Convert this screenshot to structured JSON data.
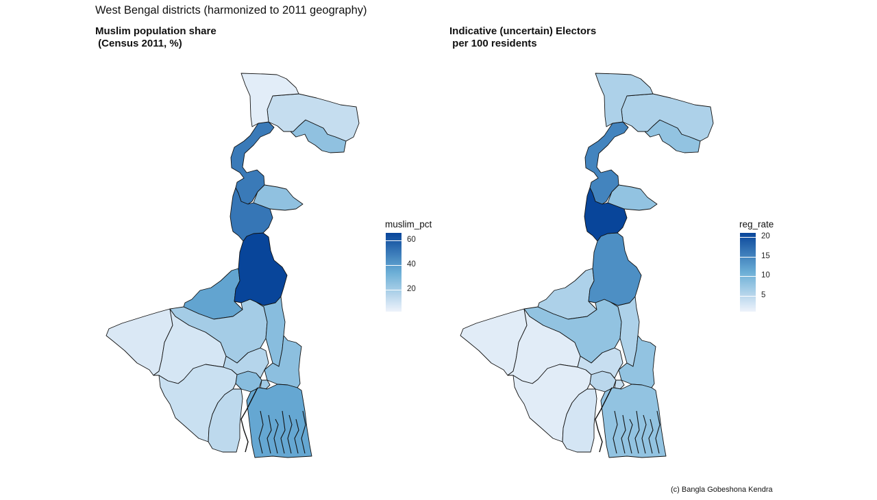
{
  "title": "West Bengal districts (harmonized to 2011 geography)",
  "credit": "(c) Bangla Gobeshona Kendra",
  "colors": {
    "low": "#eef3fb",
    "high": "#08459a",
    "border": "#111111"
  },
  "panels": [
    {
      "title": "Muslim population share\n (Census 2011, %)",
      "legend": {
        "title": "muslim_pct",
        "min": 2,
        "max": 66,
        "ticks": [
          20,
          40,
          60
        ]
      },
      "values": {
        "darjeeling": 5,
        "jalpaiguri": 12,
        "coochbehar": 25,
        "uttar_dinajpur": 50,
        "dakshin_dinajpur": 25,
        "malda": 51,
        "murshidabad": 66,
        "birbhum": 37,
        "bardhaman": 20,
        "nadia": 27,
        "north_24": 26,
        "howrah": 27,
        "hooghly": 16,
        "kolkata": 21,
        "south_24": 36,
        "purulia": 7,
        "bankura": 8,
        "paschim_medinipur": 11,
        "purba_medinipur": 14
      }
    },
    {
      "title": "Indicative (uncertain) Electors\n per 100 residents",
      "legend": {
        "title": "reg_rate",
        "min": 1,
        "max": 21,
        "ticks": [
          5,
          10,
          15,
          20
        ]
      },
      "values": {
        "darjeeling": 6,
        "jalpaiguri": 6,
        "coochbehar": 8,
        "uttar_dinajpur": 15,
        "dakshin_dinajpur": 8,
        "malda": 21,
        "murshidabad": 14,
        "birbhum": 6,
        "bardhaman": 8,
        "nadia": 6,
        "north_24": 8,
        "howrah": 5,
        "hooghly": 4,
        "kolkata": 4,
        "south_24": 8,
        "purulia": 2,
        "bankura": 2,
        "paschim_medinipur": 2,
        "purba_medinipur": 3
      }
    }
  ]
}
